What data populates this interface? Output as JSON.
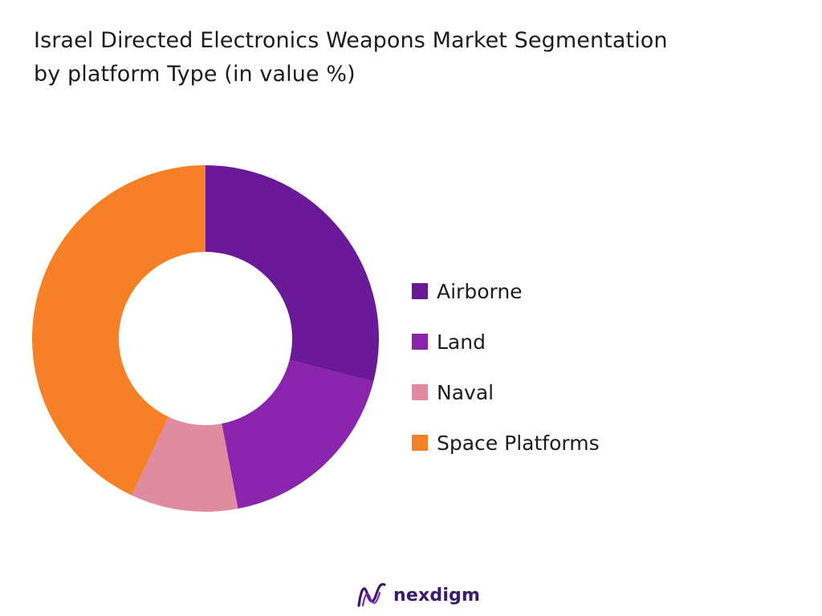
{
  "title_line1": "Israel Directed Electronics Weapons Market Segmentation",
  "title_line2": "by platform Type (in value %)",
  "brand": "nexdigm",
  "chart_data": {
    "type": "pie",
    "variant": "donut",
    "categories": [
      "Airborne",
      "Land",
      "Naval",
      "Space Platforms"
    ],
    "values": [
      29,
      18,
      10,
      43
    ],
    "colors": [
      "#6a1a99",
      "#8a24ac",
      "#df8ba0",
      "#f58025"
    ],
    "legend_position": "right",
    "start_angle": "12 o'clock, clockwise"
  }
}
